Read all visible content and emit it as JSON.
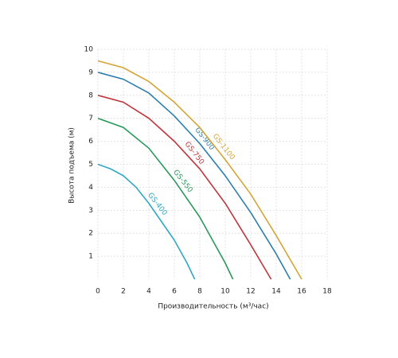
{
  "chart_data": {
    "type": "line",
    "x_label": "Производительность (м³/час)",
    "y_label": "Высота подъема (м)",
    "xlim": [
      0,
      18
    ],
    "xticks": [
      0,
      2,
      4,
      6,
      8,
      10,
      12,
      14,
      16,
      18
    ],
    "ylim": [
      0,
      10
    ],
    "yticks": [
      1,
      2,
      3,
      4,
      5,
      6,
      7,
      8,
      9,
      10
    ],
    "grid": true,
    "series": [
      {
        "name": "GS-400",
        "color": "#2fa8c4",
        "x": [
          0,
          1,
          2,
          3,
          4,
          5,
          6,
          7,
          7.6
        ],
        "values": [
          5,
          4.8,
          4.5,
          4.0,
          3.3,
          2.5,
          1.7,
          0.7,
          0
        ]
      },
      {
        "name": "GS-550",
        "color": "#2a9a5a",
        "x": [
          0,
          2,
          4,
          6,
          8,
          10,
          10.6
        ],
        "values": [
          7,
          6.6,
          5.7,
          4.3,
          2.7,
          0.7,
          0
        ]
      },
      {
        "name": "GS-750",
        "color": "#c0363c",
        "x": [
          0,
          2,
          4,
          6,
          8,
          10,
          12,
          13.6
        ],
        "values": [
          8,
          7.7,
          7.0,
          6.0,
          4.8,
          3.3,
          1.5,
          0
        ]
      },
      {
        "name": "GS-900",
        "color": "#2c7fb0",
        "x": [
          0,
          2,
          4,
          6,
          8,
          10,
          12,
          14,
          15.1
        ],
        "values": [
          9,
          8.7,
          8.1,
          7.1,
          5.9,
          4.5,
          2.9,
          1.1,
          0
        ]
      },
      {
        "name": "GS-1100",
        "color": "#d4a537",
        "x": [
          0,
          2,
          4,
          6,
          8,
          10,
          12,
          14,
          16
        ],
        "values": [
          9.5,
          9.2,
          8.6,
          7.7,
          6.6,
          5.2,
          3.7,
          1.9,
          0
        ]
      }
    ]
  }
}
